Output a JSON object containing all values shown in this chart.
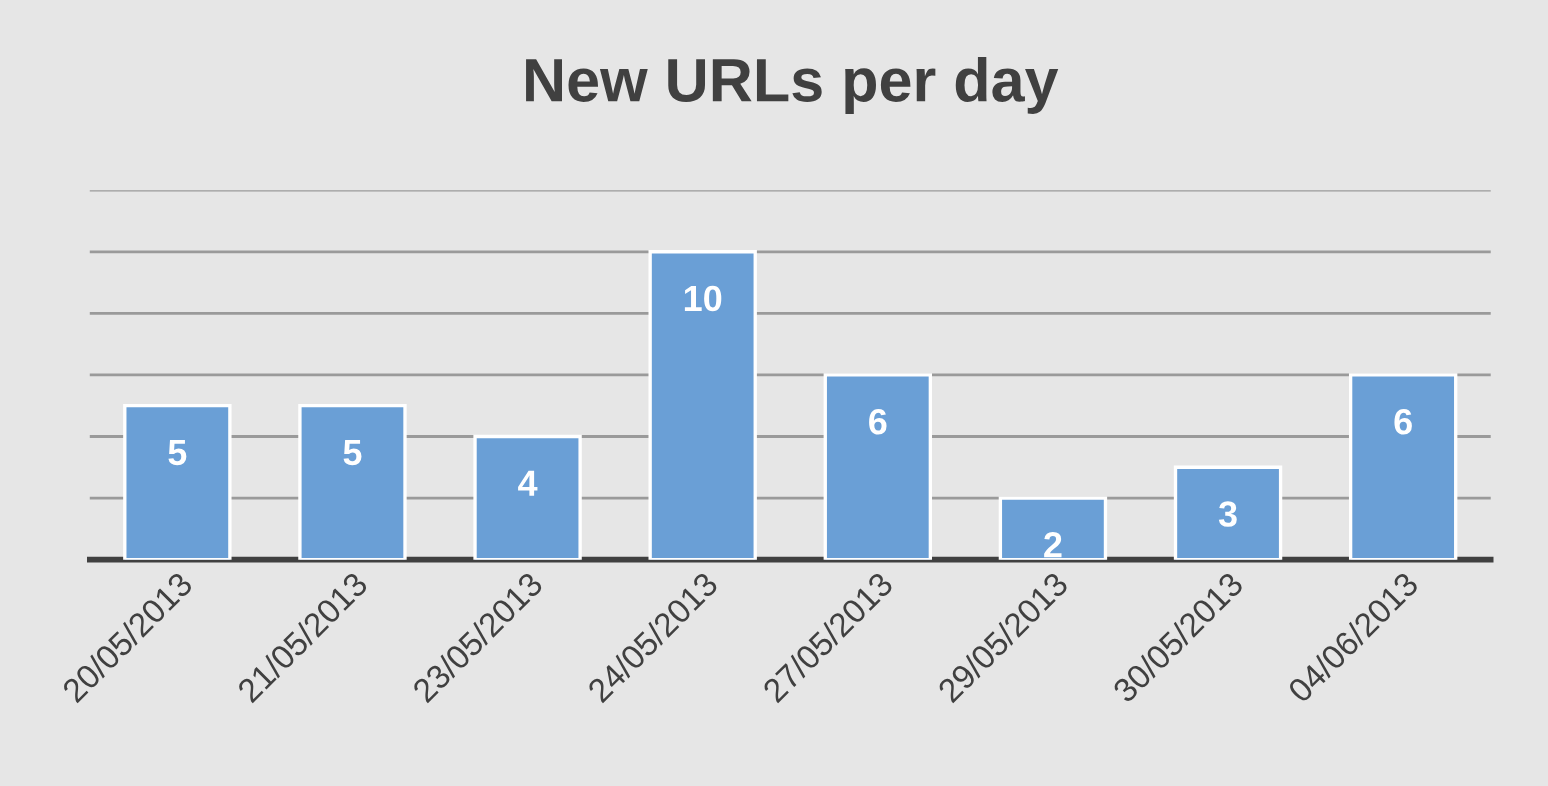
{
  "chart_data": {
    "type": "bar",
    "title": "New URLs per day",
    "categories": [
      "20/05/2013",
      "21/05/2013",
      "23/05/2013",
      "24/05/2013",
      "27/05/2013",
      "29/05/2013",
      "30/05/2013",
      "04/06/2013"
    ],
    "values": [
      5,
      5,
      4,
      10,
      6,
      2,
      3,
      6
    ],
    "color": "#6a9fd6",
    "ylim": [
      0,
      12
    ],
    "yticks": [
      {
        "value": 0,
        "label": null
      },
      {
        "value": 2,
        "label": null
      },
      {
        "value": 4,
        "label": null
      },
      {
        "value": 6,
        "label": null
      },
      {
        "value": 8,
        "label": null
      },
      {
        "value": 10,
        "label": null
      },
      {
        "value": 12,
        "label": null
      }
    ],
    "grid": "y",
    "tick_labels": "x",
    "data_labels": true
  }
}
